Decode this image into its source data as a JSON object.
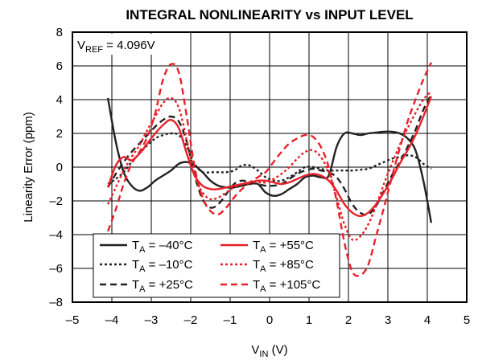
{
  "chart_data": {
    "type": "line",
    "title": "INTEGRAL NONLINEARITY vs INPUT LEVEL",
    "xlabel": {
      "main": "V",
      "sub": "IN",
      "unit": " (V)"
    },
    "ylabel": "Linearity Error (ppm)",
    "annotation": {
      "main": "V",
      "sub": "REF",
      "rest": " = 4.096V"
    },
    "xlim": [
      -5,
      5
    ],
    "ylim": [
      -8,
      8
    ],
    "xticks": [
      -5,
      -4,
      -3,
      -2,
      -1,
      0,
      1,
      2,
      3,
      4,
      5
    ],
    "yticks": [
      -8,
      -6,
      -4,
      -2,
      0,
      2,
      4,
      6,
      8
    ],
    "xtick_labels": [
      "–5",
      "–4",
      "–3",
      "–2",
      "–1",
      "0",
      "1",
      "2",
      "3",
      "4",
      "5"
    ],
    "ytick_labels": [
      "–8",
      "–6",
      "–4",
      "–2",
      "0",
      "2",
      "4",
      "6",
      "8"
    ],
    "grid": true,
    "legend_position": "bottom-left",
    "series": [
      {
        "name": "T_A = –40°C",
        "label_main": "T",
        "label_sub": "A",
        "label_rest": " = –40°C",
        "color": "#222222",
        "dash": "solid",
        "x": [
          -4.1,
          -3.9,
          -3.7,
          -3.5,
          -3.3,
          -3.1,
          -2.9,
          -2.7,
          -2.5,
          -2.3,
          -2.1,
          -1.9,
          -1.7,
          -1.5,
          -1.3,
          -1.1,
          -0.9,
          -0.7,
          -0.5,
          -0.3,
          -0.1,
          0.1,
          0.3,
          0.5,
          0.7,
          0.9,
          1.1,
          1.3,
          1.5,
          1.7,
          1.9,
          2.1,
          2.3,
          2.5,
          2.7,
          2.9,
          3.1,
          3.3,
          3.5,
          3.7,
          3.9,
          4.1
        ],
        "y": [
          4.1,
          1.5,
          -0.3,
          -1.1,
          -1.4,
          -1.2,
          -0.8,
          -0.5,
          -0.2,
          0.2,
          0.3,
          0.1,
          -0.3,
          -0.8,
          -1.1,
          -1.2,
          -1.2,
          -1.1,
          -1.0,
          -1.0,
          -1.5,
          -1.7,
          -1.6,
          -1.3,
          -1.0,
          -0.6,
          -0.5,
          -0.6,
          -0.5,
          1.2,
          2.0,
          2.0,
          1.9,
          2.0,
          2.05,
          2.1,
          2.1,
          2.0,
          1.7,
          1.0,
          -0.8,
          -3.3
        ]
      },
      {
        "name": "T_A = –10°C",
        "label_main": "T",
        "label_sub": "A",
        "label_rest": " = –10°C",
        "color": "#222222",
        "dash": "3,3",
        "x": [
          -4.1,
          -3.9,
          -3.7,
          -3.5,
          -3.3,
          -3.1,
          -2.9,
          -2.7,
          -2.5,
          -2.3,
          -2.1,
          -1.9,
          -1.7,
          -1.5,
          -1.3,
          -1.1,
          -0.9,
          -0.7,
          -0.5,
          -0.3,
          -0.1,
          0.1,
          0.3,
          0.5,
          0.7,
          0.9,
          1.1,
          1.3,
          1.5,
          1.7,
          1.9,
          2.1,
          2.3,
          2.5,
          2.7,
          2.9,
          3.1,
          3.3,
          3.5,
          3.7,
          3.9,
          4.1
        ],
        "y": [
          -1.0,
          -0.7,
          -0.3,
          0.3,
          0.8,
          1.3,
          1.7,
          1.9,
          2.0,
          1.9,
          1.2,
          0.2,
          -0.3,
          -0.3,
          -0.3,
          -0.3,
          -0.2,
          0.1,
          0.1,
          -0.2,
          -0.6,
          -0.8,
          -0.8,
          -0.6,
          -0.3,
          0.0,
          0.0,
          -0.1,
          -0.2,
          -0.2,
          -0.2,
          -0.2,
          -0.15,
          -0.1,
          0.1,
          0.3,
          0.5,
          0.6,
          0.7,
          0.6,
          0.2,
          -0.1
        ]
      },
      {
        "name": "T_A = +25°C",
        "label_main": "T",
        "label_sub": "A",
        "label_rest": " = +25°C",
        "color": "#222222",
        "dash": "8,5",
        "x": [
          -4.1,
          -3.9,
          -3.7,
          -3.5,
          -3.3,
          -3.1,
          -2.9,
          -2.7,
          -2.5,
          -2.3,
          -2.1,
          -1.9,
          -1.7,
          -1.5,
          -1.3,
          -1.1,
          -0.9,
          -0.7,
          -0.5,
          -0.3,
          -0.1,
          0.1,
          0.3,
          0.5,
          0.7,
          0.9,
          1.1,
          1.3,
          1.5,
          1.7,
          1.9,
          2.1,
          2.3,
          2.5,
          2.7,
          2.9,
          3.1,
          3.3,
          3.5,
          3.7,
          3.9,
          4.1
        ],
        "y": [
          -1.2,
          -0.4,
          0.3,
          0.9,
          1.4,
          1.9,
          2.4,
          2.8,
          3.0,
          2.7,
          1.5,
          -0.5,
          -1.9,
          -2.4,
          -2.2,
          -1.6,
          -1.0,
          -0.8,
          -0.9,
          -1.0,
          -1.1,
          -1.1,
          -1.0,
          -0.7,
          -0.4,
          -0.2,
          -0.1,
          -0.2,
          -0.3,
          -0.6,
          -1.3,
          -2.2,
          -2.7,
          -2.8,
          -2.3,
          -1.4,
          -0.5,
          0.3,
          1.2,
          2.2,
          3.4,
          4.3
        ]
      },
      {
        "name": "T_A = +55°C",
        "label_main": "T",
        "label_sub": "A",
        "label_rest": " = +55°C",
        "color": "#e8212a",
        "dash": "solid",
        "x": [
          -4.1,
          -3.9,
          -3.7,
          -3.5,
          -3.3,
          -3.1,
          -2.9,
          -2.7,
          -2.5,
          -2.3,
          -2.1,
          -1.9,
          -1.7,
          -1.5,
          -1.3,
          -1.1,
          -0.9,
          -0.7,
          -0.5,
          -0.3,
          -0.1,
          0.1,
          0.3,
          0.5,
          0.7,
          0.9,
          1.1,
          1.3,
          1.5,
          1.7,
          1.9,
          2.1,
          2.3,
          2.5,
          2.7,
          2.9,
          3.1,
          3.3,
          3.5,
          3.7,
          3.9,
          4.1
        ],
        "y": [
          -1.2,
          0.1,
          0.6,
          0.4,
          0.8,
          1.4,
          2.0,
          2.5,
          2.8,
          2.3,
          0.8,
          -0.5,
          -1.1,
          -1.3,
          -1.3,
          -1.2,
          -1.1,
          -1.0,
          -0.9,
          -0.8,
          -0.8,
          -0.9,
          -1.0,
          -0.9,
          -0.7,
          -0.5,
          -0.4,
          -0.5,
          -0.8,
          -1.4,
          -2.2,
          -2.7,
          -2.9,
          -2.7,
          -2.2,
          -1.5,
          -0.7,
          0.2,
          1.0,
          1.9,
          3.0,
          4.2
        ]
      },
      {
        "name": "T_A = +85°C",
        "label_main": "T",
        "label_sub": "A",
        "label_rest": " = +85°C",
        "color": "#e8212a",
        "dash": "3,3",
        "x": [
          -4.1,
          -3.9,
          -3.7,
          -3.5,
          -3.3,
          -3.1,
          -2.9,
          -2.7,
          -2.5,
          -2.3,
          -2.1,
          -1.9,
          -1.7,
          -1.5,
          -1.3,
          -1.1,
          -0.9,
          -0.7,
          -0.5,
          -0.3,
          -0.1,
          0.1,
          0.3,
          0.5,
          0.7,
          0.9,
          1.1,
          1.3,
          1.5,
          1.7,
          1.9,
          2.1,
          2.3,
          2.5,
          2.7,
          2.9,
          3.1,
          3.3,
          3.5,
          3.7,
          3.9,
          4.1
        ],
        "y": [
          -2.2,
          -1.2,
          -0.2,
          0.6,
          1.3,
          2.2,
          3.0,
          3.8,
          4.1,
          3.5,
          1.6,
          -0.5,
          -1.5,
          -1.9,
          -1.8,
          -1.5,
          -1.2,
          -1.0,
          -0.9,
          -0.9,
          -0.9,
          -0.7,
          -0.4,
          0.0,
          0.5,
          0.9,
          1.0,
          0.6,
          -0.3,
          -1.8,
          -3.4,
          -4.3,
          -4.1,
          -3.4,
          -2.3,
          -1.0,
          0.2,
          1.3,
          2.3,
          3.2,
          4.0,
          4.5
        ]
      },
      {
        "name": "T_A = +105°C",
        "label_main": "T",
        "label_sub": "A",
        "label_rest": " = +105°C",
        "color": "#e8212a",
        "dash": "8,5",
        "x": [
          -4.1,
          -3.9,
          -3.7,
          -3.5,
          -3.3,
          -3.1,
          -2.9,
          -2.7,
          -2.5,
          -2.3,
          -2.1,
          -1.9,
          -1.7,
          -1.5,
          -1.3,
          -1.1,
          -0.9,
          -0.7,
          -0.5,
          -0.3,
          -0.1,
          0.1,
          0.3,
          0.5,
          0.7,
          0.9,
          1.1,
          1.3,
          1.5,
          1.7,
          1.9,
          2.1,
          2.3,
          2.5,
          2.7,
          2.9,
          3.1,
          3.3,
          3.5,
          3.7,
          3.9,
          4.1
        ],
        "y": [
          -3.8,
          -2.5,
          -1.0,
          0.2,
          0.9,
          1.8,
          3.2,
          5.2,
          6.1,
          5.6,
          3.0,
          0.0,
          -1.8,
          -2.6,
          -2.8,
          -2.4,
          -1.8,
          -1.3,
          -0.9,
          -0.6,
          -0.3,
          0.3,
          0.9,
          1.4,
          1.7,
          1.9,
          1.8,
          1.2,
          0.0,
          -2.0,
          -4.5,
          -6.2,
          -6.4,
          -5.8,
          -4.1,
          -2.4,
          -0.6,
          1.1,
          2.7,
          4.0,
          5.2,
          6.2
        ]
      }
    ]
  }
}
